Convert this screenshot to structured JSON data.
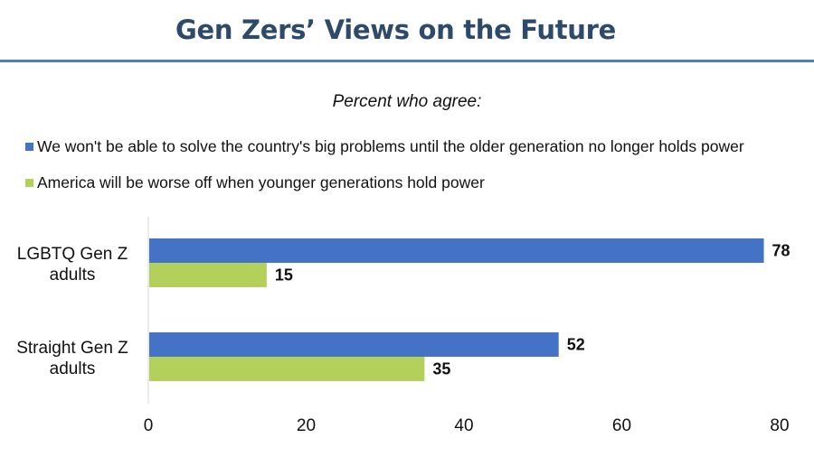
{
  "header": {
    "title": "Gen Zers’ Views on the Future"
  },
  "chart_data": {
    "type": "bar",
    "orientation": "horizontal",
    "title": "Gen Zers’ Views on the Future",
    "subtitle": "Percent who agree:",
    "categories": [
      "LGBTQ Gen Z adults",
      "Straight Gen Z adults"
    ],
    "category_lines": [
      [
        "LGBTQ Gen Z",
        "adults"
      ],
      [
        "Straight Gen Z",
        "adults"
      ]
    ],
    "series": [
      {
        "name": "We won't be able to solve the country's big problems until the older generation no longer holds power",
        "color": "#4472c4",
        "values": [
          78,
          52
        ]
      },
      {
        "name": "America will be worse off when younger generations hold power",
        "color": "#b3d05a",
        "values": [
          15,
          35
        ]
      }
    ],
    "xlabel": "",
    "ylabel": "",
    "xlim": [
      0,
      80
    ],
    "xticks": [
      0,
      20,
      40,
      60,
      80
    ],
    "grid": false,
    "legend_position": "top-left",
    "data_labels": true
  }
}
